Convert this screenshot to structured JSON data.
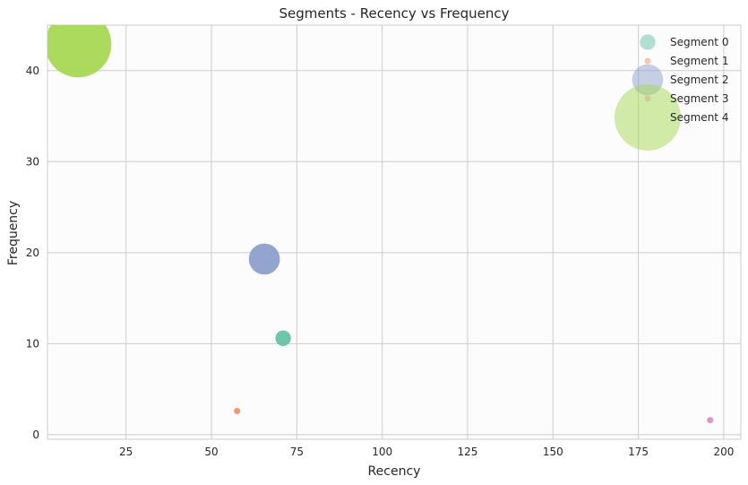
{
  "chart_data": {
    "type": "scatter",
    "title": "Segments - Recency vs Frequency",
    "xlabel": "Recency",
    "ylabel": "Frequency",
    "xlim": [
      2,
      205
    ],
    "ylim": [
      -0.5,
      45
    ],
    "xticks": [
      25,
      50,
      75,
      100,
      125,
      150,
      175,
      200
    ],
    "yticks": [
      0,
      10,
      20,
      30,
      40
    ],
    "grid": true,
    "legend": {
      "placement": "top-right"
    },
    "series": [
      {
        "name": "Segment 0",
        "color": "#66c2a5",
        "points": [
          {
            "x": 71,
            "y": 10.6,
            "size": 0.055
          }
        ]
      },
      {
        "name": "Segment 1",
        "color": "#fc8d62",
        "points": [
          {
            "x": 57.5,
            "y": 2.6,
            "size": 0.006
          }
        ]
      },
      {
        "name": "Segment 2",
        "color": "#8da0cb",
        "points": [
          {
            "x": 65.5,
            "y": 19.3,
            "size": 0.22
          }
        ]
      },
      {
        "name": "Segment 3",
        "color": "#e78ac3",
        "points": [
          {
            "x": 196,
            "y": 1.6,
            "size": 0.0028
          }
        ]
      },
      {
        "name": "Segment 4",
        "color": "#a6d854",
        "points": [
          {
            "x": 11,
            "y": 42.9,
            "size": 1.0
          }
        ]
      }
    ]
  }
}
